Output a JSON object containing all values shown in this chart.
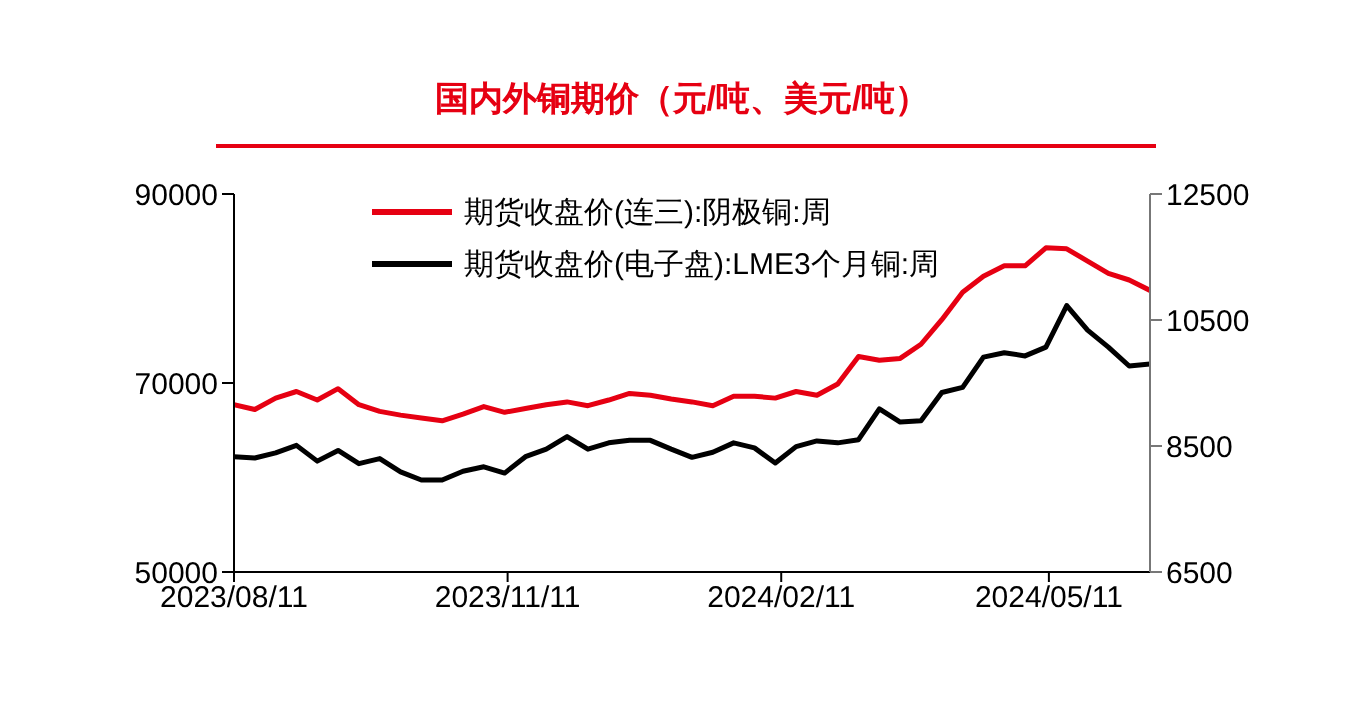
{
  "chart_data": {
    "type": "line",
    "title": "国内外铜期价（元/吨、美元/吨）",
    "x": [
      "2023-08-11",
      "2023-08-18",
      "2023-08-25",
      "2023-09-01",
      "2023-09-08",
      "2023-09-15",
      "2023-09-22",
      "2023-09-29",
      "2023-10-06",
      "2023-10-13",
      "2023-10-20",
      "2023-10-27",
      "2023-11-03",
      "2023-11-10",
      "2023-11-17",
      "2023-11-24",
      "2023-12-01",
      "2023-12-08",
      "2023-12-15",
      "2023-12-22",
      "2023-12-29",
      "2024-01-05",
      "2024-01-12",
      "2024-01-19",
      "2024-01-26",
      "2024-02-02",
      "2024-02-09",
      "2024-02-16",
      "2024-02-23",
      "2024-03-01",
      "2024-03-08",
      "2024-03-15",
      "2024-03-22",
      "2024-03-29",
      "2024-04-05",
      "2024-04-12",
      "2024-04-19",
      "2024-04-26",
      "2024-05-03",
      "2024-05-10",
      "2024-05-17",
      "2024-05-24",
      "2024-05-31",
      "2024-06-07",
      "2024-06-14"
    ],
    "series": [
      {
        "name": "期货收盘价(连三):阴极铜:周",
        "color": "#e60012",
        "values": [
          67700,
          67200,
          68400,
          69100,
          68200,
          69400,
          67700,
          67000,
          66600,
          66300,
          66000,
          66700,
          67500,
          66900,
          67300,
          67700,
          68000,
          67600,
          68200,
          68900,
          68700,
          68300,
          68000,
          67600,
          68600,
          68600,
          68400,
          69100,
          68700,
          69900,
          72800,
          72400,
          72600,
          74100,
          76700,
          79600,
          81300,
          82400,
          82400,
          84300,
          84200,
          82900,
          81600,
          80900,
          79800
        ]
      },
      {
        "name": "期货收盘价(电子盘):LME3个月铜:周",
        "color": "#000000",
        "axis": "y2",
        "values": [
          8330,
          8310,
          8390,
          8510,
          8260,
          8430,
          8220,
          8300,
          8090,
          7960,
          7960,
          8100,
          8170,
          8070,
          8330,
          8450,
          8650,
          8450,
          8550,
          8590,
          8590,
          8450,
          8320,
          8400,
          8550,
          8470,
          8230,
          8490,
          8580,
          8550,
          8600,
          9090,
          8880,
          8900,
          9350,
          9430,
          9910,
          9980,
          9930,
          10070,
          10730,
          10340,
          10070,
          9770,
          9800
        ]
      }
    ],
    "xlim": [
      "2023-08-11",
      "2024-06-14"
    ],
    "xticks": [
      {
        "value": "2023-08-11",
        "label": "2023/08/11"
      },
      {
        "value": "2023-11-11",
        "label": "2023/11/11"
      },
      {
        "value": "2024-02-11",
        "label": "2024/02/11"
      },
      {
        "value": "2024-05-11",
        "label": "2024/05/11"
      }
    ],
    "ylim": [
      50000,
      90000
    ],
    "yticks": [
      50000,
      70000,
      90000
    ],
    "y2lim": [
      6500,
      12500
    ],
    "y2ticks": [
      6500,
      8500,
      10500,
      12500
    ],
    "grid": false,
    "legend": "top",
    "marker": "none",
    "line_style": "solid"
  }
}
